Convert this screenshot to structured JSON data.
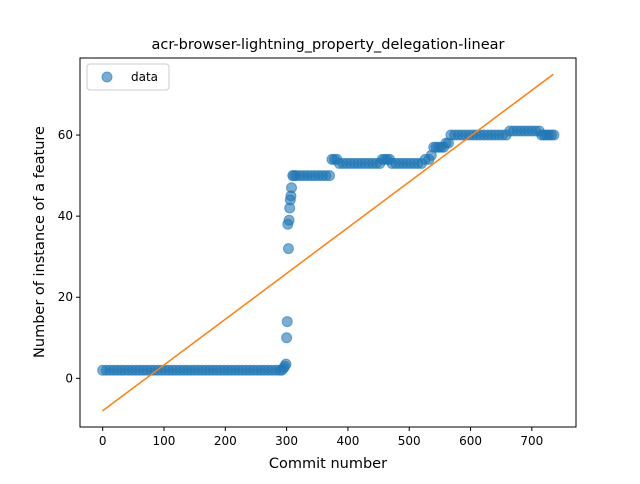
{
  "chart_data": {
    "type": "scatter",
    "title": "acr-browser-lightning_property_delegation-linear",
    "xlabel": "Commit number",
    "ylabel": "Number of instance of a feature",
    "xlim": [
      -37,
      772
    ],
    "ylim": [
      -12,
      79
    ],
    "x_ticks": [
      0,
      100,
      200,
      300,
      400,
      500,
      600,
      700
    ],
    "y_ticks": [
      0,
      20,
      40,
      60
    ],
    "grid": false,
    "legend": {
      "placement": "top-left",
      "entries": [
        "data"
      ]
    },
    "colors": {
      "data": "#1f77b4",
      "fit": "#ff7f0e"
    },
    "series": [
      {
        "name": "data",
        "kind": "scatter",
        "points": [
          [
            0,
            2
          ],
          [
            6,
            2
          ],
          [
            12,
            2
          ],
          [
            18,
            2
          ],
          [
            24,
            2
          ],
          [
            30,
            2
          ],
          [
            36,
            2
          ],
          [
            42,
            2
          ],
          [
            48,
            2
          ],
          [
            54,
            2
          ],
          [
            60,
            2
          ],
          [
            66,
            2
          ],
          [
            72,
            2
          ],
          [
            78,
            2
          ],
          [
            84,
            2
          ],
          [
            90,
            2
          ],
          [
            96,
            2
          ],
          [
            102,
            2
          ],
          [
            108,
            2
          ],
          [
            114,
            2
          ],
          [
            120,
            2
          ],
          [
            126,
            2
          ],
          [
            132,
            2
          ],
          [
            138,
            2
          ],
          [
            144,
            2
          ],
          [
            150,
            2
          ],
          [
            156,
            2
          ],
          [
            162,
            2
          ],
          [
            168,
            2
          ],
          [
            174,
            2
          ],
          [
            180,
            2
          ],
          [
            186,
            2
          ],
          [
            192,
            2
          ],
          [
            198,
            2
          ],
          [
            204,
            2
          ],
          [
            210,
            2
          ],
          [
            216,
            2
          ],
          [
            222,
            2
          ],
          [
            228,
            2
          ],
          [
            234,
            2
          ],
          [
            240,
            2
          ],
          [
            246,
            2
          ],
          [
            252,
            2
          ],
          [
            258,
            2
          ],
          [
            264,
            2
          ],
          [
            270,
            2
          ],
          [
            276,
            2
          ],
          [
            282,
            2
          ],
          [
            288,
            2
          ],
          [
            292,
            2
          ],
          [
            295,
            2.5
          ],
          [
            297,
            3
          ],
          [
            299,
            3.5
          ],
          [
            300,
            10
          ],
          [
            301,
            14
          ],
          [
            302,
            38
          ],
          [
            303,
            32
          ],
          [
            304,
            39
          ],
          [
            305,
            42
          ],
          [
            306,
            44
          ],
          [
            307,
            45
          ],
          [
            308,
            47
          ],
          [
            310,
            50
          ],
          [
            312,
            50
          ],
          [
            316,
            50
          ],
          [
            322,
            50
          ],
          [
            328,
            50
          ],
          [
            334,
            50
          ],
          [
            340,
            50
          ],
          [
            346,
            50
          ],
          [
            352,
            50
          ],
          [
            358,
            50
          ],
          [
            364,
            50
          ],
          [
            370,
            50
          ],
          [
            374,
            54
          ],
          [
            378,
            54
          ],
          [
            382,
            54
          ],
          [
            386,
            53
          ],
          [
            392,
            53
          ],
          [
            398,
            53
          ],
          [
            404,
            53
          ],
          [
            410,
            53
          ],
          [
            416,
            53
          ],
          [
            422,
            53
          ],
          [
            428,
            53
          ],
          [
            434,
            53
          ],
          [
            440,
            53
          ],
          [
            446,
            53
          ],
          [
            452,
            53
          ],
          [
            456,
            54
          ],
          [
            460,
            54
          ],
          [
            464,
            54
          ],
          [
            468,
            54
          ],
          [
            472,
            53
          ],
          [
            478,
            53
          ],
          [
            484,
            53
          ],
          [
            490,
            53
          ],
          [
            496,
            53
          ],
          [
            502,
            53
          ],
          [
            508,
            53
          ],
          [
            514,
            53
          ],
          [
            520,
            53
          ],
          [
            526,
            54
          ],
          [
            532,
            54
          ],
          [
            536,
            55
          ],
          [
            540,
            57
          ],
          [
            544,
            57
          ],
          [
            548,
            57
          ],
          [
            552,
            57
          ],
          [
            556,
            57
          ],
          [
            560,
            58
          ],
          [
            564,
            58
          ],
          [
            568,
            60
          ],
          [
            574,
            60
          ],
          [
            580,
            60
          ],
          [
            586,
            60
          ],
          [
            592,
            60
          ],
          [
            598,
            60
          ],
          [
            604,
            60
          ],
          [
            610,
            60
          ],
          [
            616,
            60
          ],
          [
            622,
            60
          ],
          [
            628,
            60
          ],
          [
            634,
            60
          ],
          [
            640,
            60
          ],
          [
            646,
            60
          ],
          [
            652,
            60
          ],
          [
            658,
            60
          ],
          [
            664,
            61
          ],
          [
            670,
            61
          ],
          [
            676,
            61
          ],
          [
            682,
            61
          ],
          [
            688,
            61
          ],
          [
            694,
            61
          ],
          [
            700,
            61
          ],
          [
            706,
            61
          ],
          [
            712,
            61
          ],
          [
            716,
            60
          ],
          [
            720,
            60
          ],
          [
            724,
            60
          ],
          [
            728,
            60
          ],
          [
            732,
            60
          ],
          [
            736,
            60
          ]
        ]
      },
      {
        "name": "",
        "kind": "line",
        "points": [
          [
            0,
            -8
          ],
          [
            735,
            75
          ]
        ]
      }
    ]
  }
}
